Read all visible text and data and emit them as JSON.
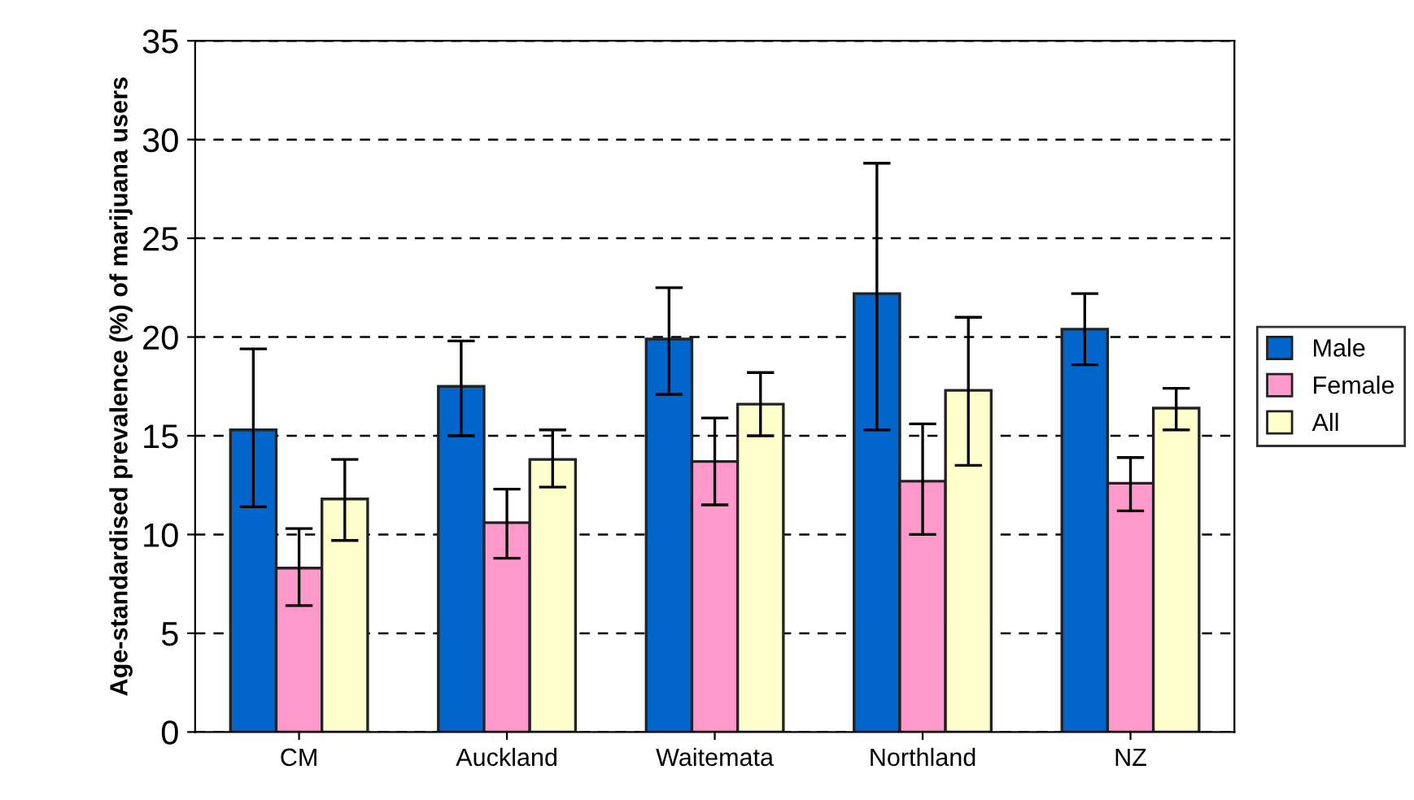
{
  "chart_data": {
    "type": "bar",
    "ylabel": "Age-standardised prevalence (%) of marijuana users",
    "categories": [
      "CM",
      "Auckland",
      "Waitemata",
      "Northland",
      "NZ"
    ],
    "series": [
      {
        "name": "Male",
        "color": "#0066cc",
        "values": [
          15.3,
          17.5,
          19.9,
          22.2,
          20.4
        ],
        "errors": [
          [
            11.4,
            19.4
          ],
          [
            15.0,
            19.8
          ],
          [
            17.1,
            22.5
          ],
          [
            15.3,
            28.8
          ],
          [
            18.6,
            22.2
          ]
        ]
      },
      {
        "name": "Female",
        "color": "#ff99cc",
        "values": [
          8.3,
          10.6,
          13.7,
          12.7,
          12.6
        ],
        "errors": [
          [
            6.4,
            10.3
          ],
          [
            8.8,
            12.3
          ],
          [
            11.5,
            15.9
          ],
          [
            10.0,
            15.6
          ],
          [
            11.2,
            13.9
          ]
        ]
      },
      {
        "name": "All",
        "color": "#ffffcc",
        "values": [
          11.8,
          13.8,
          16.6,
          17.3,
          16.4
        ],
        "errors": [
          [
            9.7,
            13.8
          ],
          [
            12.4,
            15.3
          ],
          [
            15.0,
            18.2
          ],
          [
            13.5,
            21.0
          ],
          [
            15.3,
            17.4
          ]
        ]
      }
    ],
    "ylim": [
      0,
      35
    ],
    "yticks": [
      0,
      5,
      10,
      15,
      20,
      25,
      30,
      35
    ],
    "grid": "y",
    "legend": "right"
  }
}
